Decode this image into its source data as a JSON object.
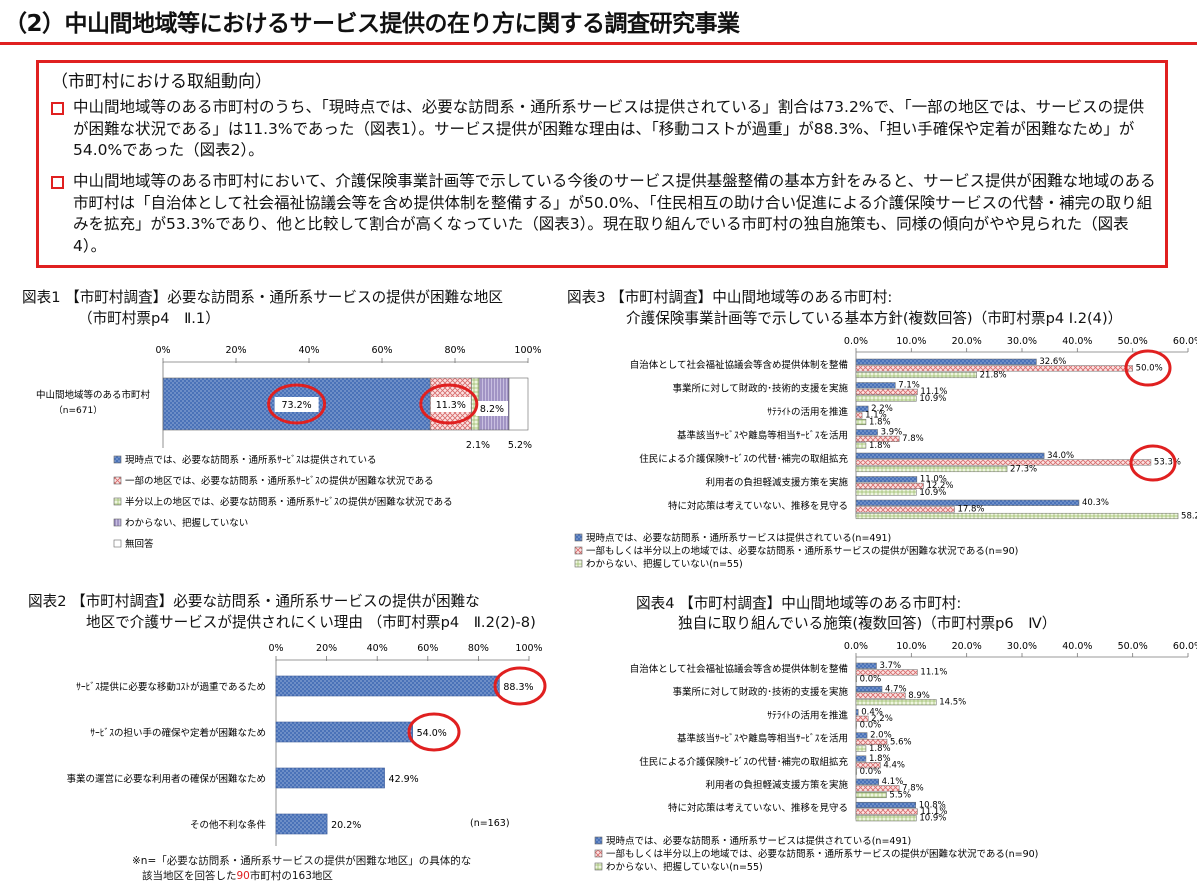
{
  "page": {
    "title": "（2）中山間地域等におけるサービス提供の在り方に関する調査研究事業",
    "summary_head": "（市町村における取組動向）",
    "bullets": [
      "中山間地域等のある市町村のうち、「現時点では、必要な訪問系・通所系サービスは提供されている」割合は73.2%で、「一部の地区では、サービスの提供が困難な状況である」は11.3%であった（図表1）。サービス提供が困難な理由は、「移動コストが過重」が88.3%、「担い手確保や定着が困難なため」が54.0%であった（図表2）。",
      "中山間地域等のある市町村において、介護保険事業計画等で示している今後のサービス提供基盤整備の基本方針をみると、サービス提供が困難な地域のある市町村は「自治体として社会福祉協議会等を含め提供体制を整備する」が50.0%、「住民相互の助け合い促進による介護保険サービスの代替・補完の取り組みを拡充」が53.3%であり、他と比較して割合が高くなっていた（図表3）。現在取り組んでいる市町村の独自施策も、同様の傾向がやや見られた（図表4）。"
    ]
  },
  "colors": {
    "red": "#e02020",
    "blue": "#4a72b8",
    "pink": "#e89090",
    "green": "#b8d38c",
    "purple": "#9b8cc0"
  },
  "chart_data": [
    {
      "id": "fig1",
      "type": "bar",
      "stacked": true,
      "orientation": "horizontal",
      "title": [
        "図表1 【市町村調査】必要な訪問系・通所系サービスの提供が困難な地区",
        "（市町村票p4　Ⅱ.1）"
      ],
      "categories": [
        "中山間地域等のある市町村"
      ],
      "sample": "（n=671）",
      "xlim": [
        0,
        100
      ],
      "xticks": [
        "0%",
        "20%",
        "40%",
        "60%",
        "80%",
        "100%"
      ],
      "series": [
        {
          "name": "現時点では、必要な訪問系・通所系ｻｰﾋﾞｽは提供されている",
          "values": [
            73.2
          ],
          "label": "73.2%",
          "color": "#4a72b8"
        },
        {
          "name": "一部の地区では、必要な訪問系・通所系ｻｰﾋﾞｽの提供が困難な状況である",
          "values": [
            11.3
          ],
          "label": "11.3%",
          "color": "#e89090"
        },
        {
          "name": "半分以上の地区では、必要な訪問系・通所系ｻｰﾋﾞｽの提供が困難な状況である",
          "values": [
            2.1
          ],
          "label": "2.1%",
          "color": "#b8d38c"
        },
        {
          "name": "わからない、把握していない",
          "values": [
            8.2
          ],
          "label": "8.2%",
          "color": "#9b8cc0"
        },
        {
          "name": "無回答",
          "values": [
            5.2
          ],
          "label": "5.2%",
          "color": "#ffffff"
        }
      ]
    },
    {
      "id": "fig2",
      "type": "bar",
      "orientation": "horizontal",
      "title": [
        "図表2 【市町村調査】必要な訪問系・通所系サービスの提供が困難な",
        "地区で介護サービスが提供されにくい理由 （市町村票p4　Ⅱ.2(2)-8)"
      ],
      "categories": [
        "ｻｰﾋﾞｽ提供に必要な移動ｺｽﾄが過重であるため",
        "ｻｰﾋﾞｽの担い手の確保や定着が困難なため",
        "事業の運営に必要な利用者の確保が困難なため",
        "その他不利な条件"
      ],
      "values": [
        88.3,
        54.0,
        42.9,
        20.2
      ],
      "labels": [
        "88.3%",
        "54.0%",
        "42.9%",
        "20.2%"
      ],
      "xlim": [
        0,
        100
      ],
      "xticks": [
        "0%",
        "20%",
        "40%",
        "60%",
        "80%",
        "100%"
      ],
      "sample": "(n=163)",
      "footnote": [
        "※n=「必要な訪問系・通所系サービスの提供が困難な地区」の具体的な",
        "該当地区を回答した",
        "90",
        "市町村の163地区"
      ]
    },
    {
      "id": "fig3",
      "type": "bar",
      "orientation": "horizontal",
      "title": [
        "図表3 【市町村調査】中山間地域等のある市町村:",
        "介護保険事業計画等で示している基本方針(複数回答)（市町村票p4 Ⅰ.2(4)）"
      ],
      "categories": [
        "自治体として社会福祉協議会等含め提供体制を整備",
        "事業所に対して財政的･技術的支援を実施",
        "ｻﾃﾗｲﾄの活用を推進",
        "基準該当ｻｰﾋﾞｽや離島等相当ｻｰﾋﾞｽを活用",
        "住民による介護保険ｻｰﾋﾞｽの代替･補完の取組拡充",
        "利用者の負担軽減支援方策を実施",
        "特に対応策は考えていない、推移を見守る"
      ],
      "xlim": [
        0,
        60
      ],
      "xticks": [
        "0.0%",
        "10.0%",
        "20.0%",
        "30.0%",
        "40.0%",
        "50.0%",
        "60.0%"
      ],
      "series": [
        {
          "name": "現時点では、必要な訪問系・通所系サービスは提供されている(n=491)",
          "values": [
            32.6,
            7.1,
            2.2,
            3.9,
            34.0,
            11.0,
            40.3
          ],
          "labels": [
            "32.6%",
            "7.1%",
            "2.2%",
            "3.9%",
            "34.0%",
            "11.0%",
            "40.3%"
          ],
          "color": "#4a72b8"
        },
        {
          "name": "一部もしくは半分以上の地域では、必要な訪問系・通所系サービスの提供が困難な状況である(n=90)",
          "values": [
            50.0,
            11.1,
            1.1,
            7.8,
            53.3,
            12.2,
            17.8
          ],
          "labels": [
            "50.0%",
            "11.1%",
            "1.1%",
            "7.8%",
            "53.3%",
            "12.2%",
            "17.8%"
          ],
          "color": "#e89090"
        },
        {
          "name": "わからない、把握していない(n=55)",
          "values": [
            21.8,
            10.9,
            1.8,
            1.8,
            27.3,
            10.9,
            58.2
          ],
          "labels": [
            "21.8%",
            "10.9%",
            "1.8%",
            "1.8%",
            "27.3%",
            "10.9%",
            "58.2%"
          ],
          "color": "#b8d38c"
        }
      ]
    },
    {
      "id": "fig4",
      "type": "bar",
      "orientation": "horizontal",
      "title": [
        "図表4 【市町村調査】中山間地域等のある市町村:",
        "独自に取り組んでいる施策(複数回答)（市町村票p6　Ⅳ）"
      ],
      "categories": [
        "自治体として社会福祉協議会等含め提供体制を整備",
        "事業所に対して財政的･技術的支援を実施",
        "ｻﾃﾗｲﾄの活用を推進",
        "基準該当ｻｰﾋﾞｽや離島等相当ｻｰﾋﾞｽを活用",
        "住民による介護保険ｻｰﾋﾞｽの代替･補完の取組拡充",
        "利用者の負担軽減支援方策を実施",
        "特に対応策は考えていない、推移を見守る"
      ],
      "xlim": [
        0,
        60
      ],
      "xticks": [
        "0.0%",
        "10.0%",
        "20.0%",
        "30.0%",
        "40.0%",
        "50.0%",
        "60.0%"
      ],
      "series": [
        {
          "name": "現時点では、必要な訪問系・通所系サービスは提供されている(n=491)",
          "values": [
            3.7,
            4.7,
            0.4,
            2.0,
            1.8,
            4.1,
            10.8
          ],
          "labels": [
            "3.7%",
            "4.7%",
            "0.4%",
            "2.0%",
            "1.8%",
            "4.1%",
            "10.8%"
          ],
          "color": "#4a72b8"
        },
        {
          "name": "一部もしくは半分以上の地域では、必要な訪問系・通所系サービスの提供が困難な状況である(n=90)",
          "values": [
            11.1,
            8.9,
            2.2,
            5.6,
            4.4,
            7.8,
            11.1
          ],
          "labels": [
            "11.1%",
            "8.9%",
            "2.2%",
            "5.6%",
            "4.4%",
            "7.8%",
            "11.1%"
          ],
          "color": "#e89090"
        },
        {
          "name": "わからない、把握していない(n=55)",
          "values": [
            0.0,
            14.5,
            0.0,
            1.8,
            0.0,
            5.5,
            10.9
          ],
          "labels": [
            "0.0%",
            "14.5%",
            "0.0%",
            "1.8%",
            "0.0%",
            "5.5%",
            "10.9%"
          ],
          "color": "#b8d38c"
        }
      ]
    }
  ]
}
